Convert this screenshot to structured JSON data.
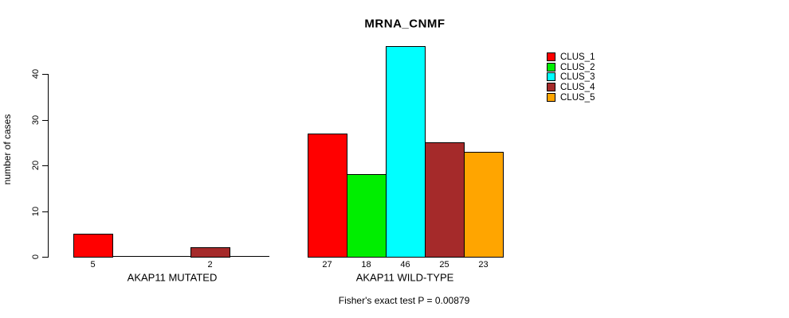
{
  "chart_data": {
    "type": "bar",
    "title": "MRNA_CNMF",
    "xlabel": "",
    "ylabel": "number of cases",
    "categories": [
      "AKAP11 MUTATED",
      "AKAP11 WILD-TYPE"
    ],
    "series": [
      {
        "name": "CLUS_1",
        "color": "#FF0000",
        "values": [
          5,
          27
        ]
      },
      {
        "name": "CLUS_2",
        "color": "#00EE00",
        "values": [
          0,
          18
        ]
      },
      {
        "name": "CLUS_3",
        "color": "#00FFFF",
        "values": [
          0,
          46
        ]
      },
      {
        "name": "CLUS_4",
        "color": "#A52A2A",
        "values": [
          2,
          25
        ]
      },
      {
        "name": "CLUS_5",
        "color": "#FFA500",
        "values": [
          0,
          23
        ]
      }
    ],
    "yticks": [
      0,
      10,
      20,
      30,
      40
    ],
    "ylim": [
      0,
      46
    ],
    "grid": false,
    "legend_position": "top-right",
    "bar_value_labels": "values printed under each bar; zero-value bars drawn flat with no label",
    "annotation": "Fisher's exact test P = 0.00879"
  },
  "colors": {
    "background": "#FFFFFF",
    "axis": "#000000",
    "text": "#000000"
  }
}
